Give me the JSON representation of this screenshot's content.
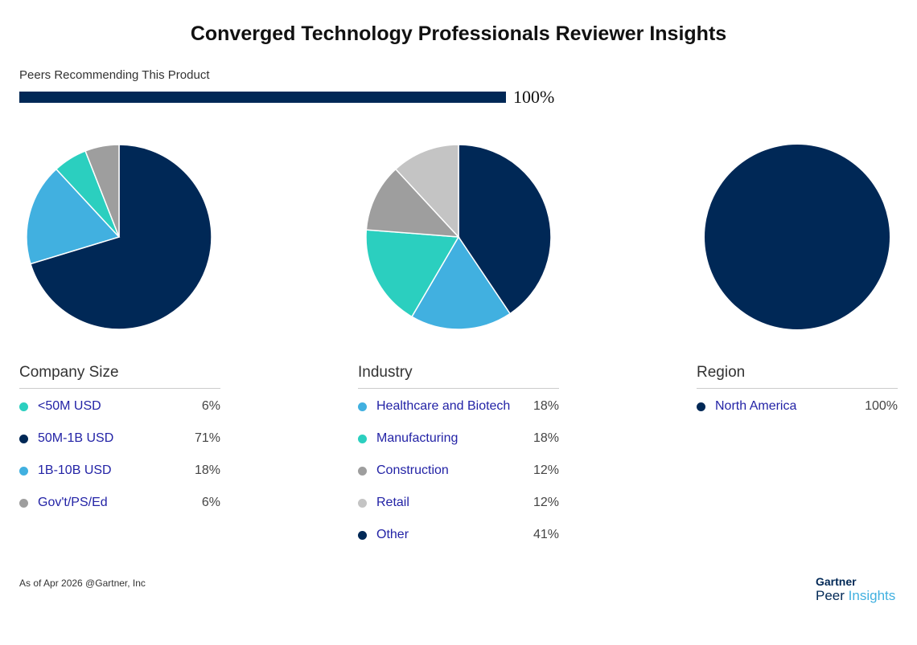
{
  "title": "Converged Technology Professionals Reviewer Insights",
  "recommend": {
    "label": "Peers Recommending This Product",
    "value": "100%",
    "fraction": 1.0
  },
  "colors": {
    "navy": "#002856",
    "light_blue": "#41b0e0",
    "teal": "#2bcfbf",
    "gray": "#9e9e9e",
    "light_gray": "#c4c4c4"
  },
  "chart_data": [
    {
      "type": "pie",
      "title": "Company Size",
      "slices": [
        {
          "label": "50M-1B USD",
          "value": 71,
          "color": "#002856"
        },
        {
          "label": "1B-10B USD",
          "value": 18,
          "color": "#41b0e0"
        },
        {
          "label": "<50M USD",
          "value": 6,
          "color": "#2bcfbf"
        },
        {
          "label": "Gov't/PS/Ed",
          "value": 6,
          "color": "#9e9e9e"
        }
      ],
      "legend": [
        {
          "label": "<50M USD",
          "pct": "6%",
          "color": "#2bcfbf"
        },
        {
          "label": "50M-1B USD",
          "pct": "71%",
          "color": "#002856"
        },
        {
          "label": "1B-10B USD",
          "pct": "18%",
          "color": "#41b0e0"
        },
        {
          "label": "Gov't/PS/Ed",
          "pct": "6%",
          "color": "#9e9e9e"
        }
      ]
    },
    {
      "type": "pie",
      "title": "Industry",
      "slices": [
        {
          "label": "Other",
          "value": 41,
          "color": "#002856"
        },
        {
          "label": "Healthcare and Biotech",
          "value": 18,
          "color": "#41b0e0"
        },
        {
          "label": "Manufacturing",
          "value": 18,
          "color": "#2bcfbf"
        },
        {
          "label": "Construction",
          "value": 12,
          "color": "#9e9e9e"
        },
        {
          "label": "Retail",
          "value": 12,
          "color": "#c4c4c4"
        }
      ],
      "legend": [
        {
          "label": "Healthcare and Biotech",
          "pct": "18%",
          "color": "#41b0e0"
        },
        {
          "label": "Manufacturing",
          "pct": "18%",
          "color": "#2bcfbf"
        },
        {
          "label": "Construction",
          "pct": "12%",
          "color": "#9e9e9e"
        },
        {
          "label": "Retail",
          "pct": "12%",
          "color": "#c4c4c4"
        },
        {
          "label": "Other",
          "pct": "41%",
          "color": "#002856"
        }
      ]
    },
    {
      "type": "pie",
      "title": "Region",
      "slices": [
        {
          "label": "North America",
          "value": 100,
          "color": "#002856"
        }
      ],
      "legend": [
        {
          "label": "North America",
          "pct": "100%",
          "color": "#002856"
        }
      ]
    }
  ],
  "footer": "As of Apr 2026 @Gartner, Inc",
  "logo": {
    "brand": "Gartner",
    "product_a": "Peer",
    "product_b": "Insights"
  }
}
